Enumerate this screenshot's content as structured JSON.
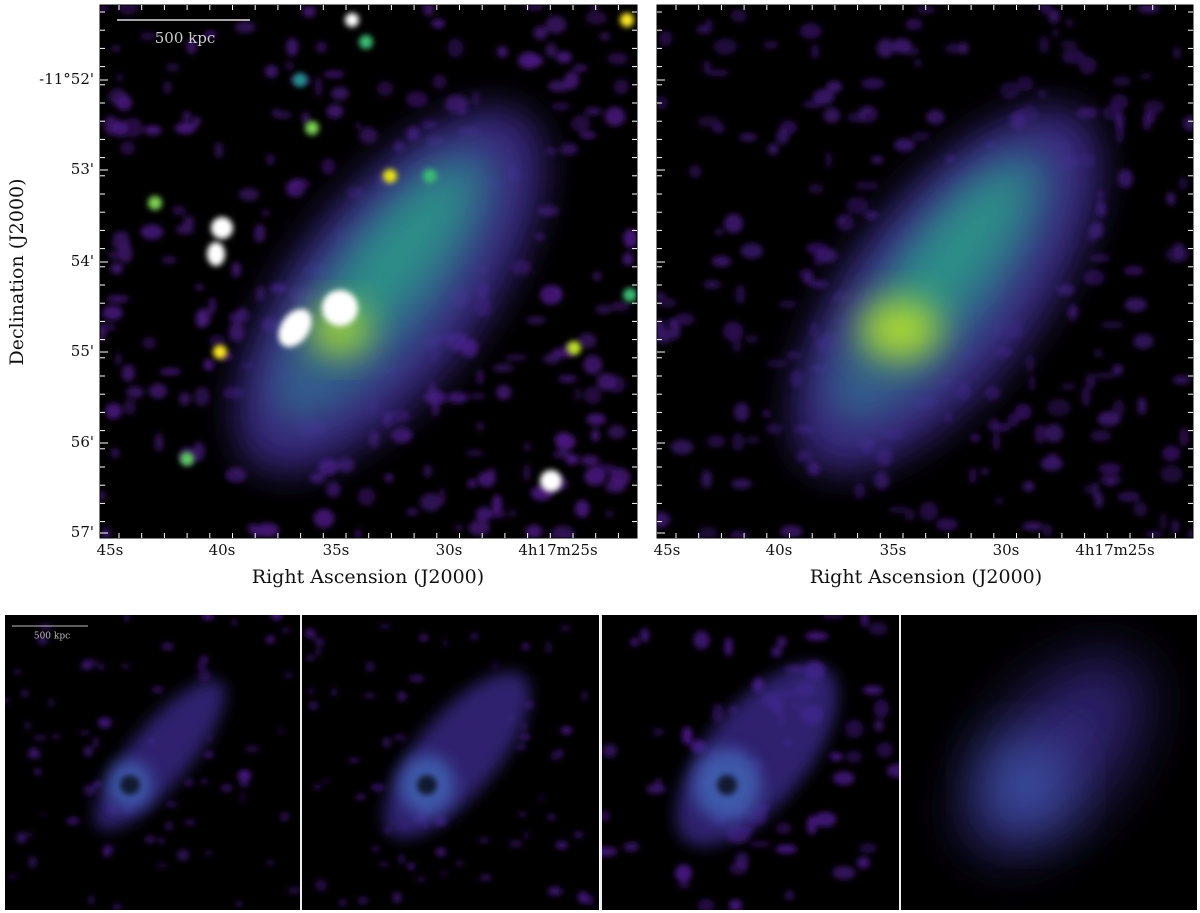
{
  "panels": [
    {
      "scale_bar": "500 kpc",
      "xlabel": "Right Ascension (J2000)",
      "ylabel": "Declination (J2000)",
      "xticks": [
        "45s",
        "40s",
        "35s",
        "30s",
        "4h17m25s"
      ],
      "yticks": [
        "-11°52'",
        "53'",
        "54'",
        "55'",
        "56'",
        "57'"
      ]
    },
    {
      "xlabel": "Right Ascension (J2000)",
      "xticks": [
        "45s",
        "40s",
        "35s",
        "30s",
        "4h17m25s"
      ]
    }
  ],
  "bottom_row": {
    "scale_bar": "500 kpc"
  }
}
